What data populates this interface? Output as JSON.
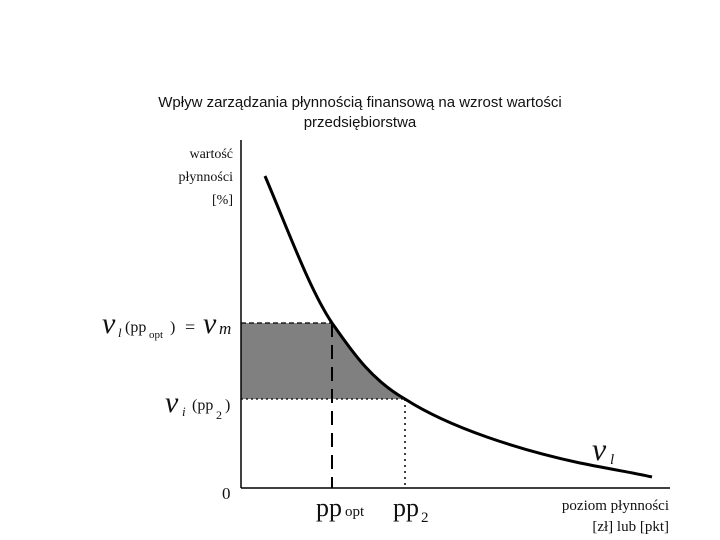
{
  "title": {
    "line1": "Wpływ zarządzania płynnością finansową na wzrost wartości",
    "line2": "przedsiębiorstwa"
  },
  "y_axis_label": {
    "line1": "wartość",
    "line2": "płynności",
    "line3": "[%]"
  },
  "x_axis_label": {
    "line1": "poziom płynności",
    "line2": "[zł] lub [pkt]"
  },
  "origin_label": "0",
  "curve_label": "v",
  "curve_label_sub": "l",
  "y_marks": {
    "upper": {
      "v": "v",
      "sub": "l",
      "arg_open": "(pp",
      "arg_sub": "opt",
      "arg_close": ")",
      "eq": "=",
      "vm": "v",
      "vm_sub": "m"
    },
    "lower": {
      "v": "v",
      "sub": "i",
      "arg_open": "(pp",
      "arg_sub": "2",
      "arg_close": ")"
    }
  },
  "x_marks": {
    "pp_opt": {
      "main": "pp",
      "sub": "opt"
    },
    "pp_2": {
      "main": "pp",
      "sub": "2"
    }
  },
  "colors": {
    "shaded_area": "#808080",
    "curve": "#000000"
  }
}
